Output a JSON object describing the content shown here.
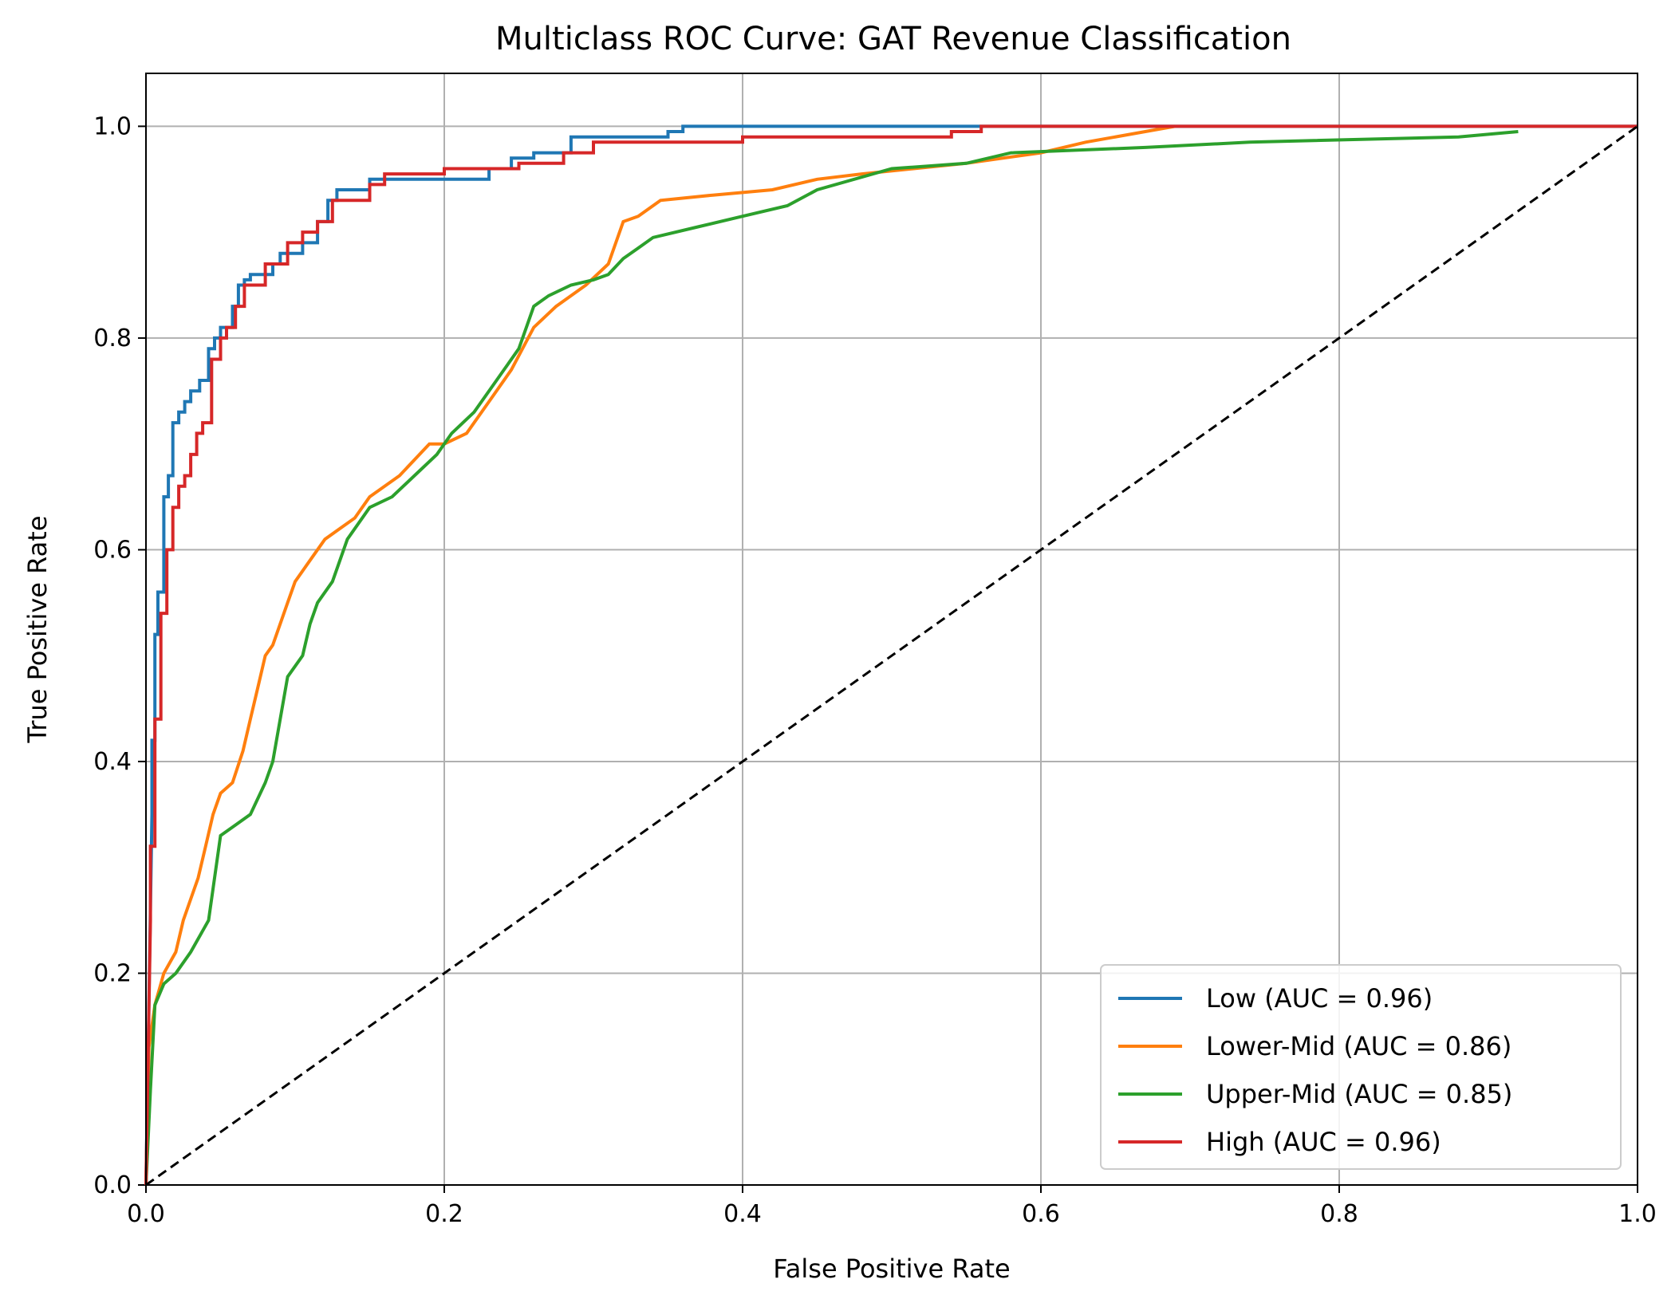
{
  "chart_data": {
    "type": "line",
    "title": "Multiclass ROC Curve: GAT Revenue Classification",
    "xlabel": "False Positive Rate",
    "ylabel": "True Positive Rate",
    "xlim": [
      0,
      1
    ],
    "ylim": [
      0,
      1.05
    ],
    "xticks": [
      "0.0",
      "0.2",
      "0.4",
      "0.6",
      "0.8",
      "1.0"
    ],
    "yticks": [
      "0.0",
      "0.2",
      "0.4",
      "0.6",
      "0.8",
      "1.0"
    ],
    "grid": true,
    "legend_position": "lower-right",
    "diagonal_reference": {
      "x": [
        0,
        1
      ],
      "y": [
        0,
        1
      ],
      "style": "dashed",
      "color": "#000000"
    },
    "series": [
      {
        "name": "Low (AUC = 0.96)",
        "color": "#1f77b4",
        "x": [
          0,
          0.004,
          0.004,
          0.006,
          0.006,
          0.008,
          0.008,
          0.012,
          0.012,
          0.015,
          0.015,
          0.018,
          0.018,
          0.022,
          0.022,
          0.026,
          0.026,
          0.03,
          0.03,
          0.036,
          0.036,
          0.042,
          0.042,
          0.046,
          0.046,
          0.05,
          0.05,
          0.058,
          0.058,
          0.062,
          0.062,
          0.066,
          0.066,
          0.07,
          0.07,
          0.085,
          0.085,
          0.09,
          0.09,
          0.105,
          0.105,
          0.115,
          0.115,
          0.122,
          0.122,
          0.128,
          0.128,
          0.15,
          0.15,
          0.165,
          0.165,
          0.23,
          0.23,
          0.245,
          0.245,
          0.26,
          0.26,
          0.285,
          0.285,
          0.35,
          0.35,
          0.36,
          0.36,
          0.56,
          0.56,
          1.0
        ],
        "y": [
          0,
          0.35,
          0.42,
          0.42,
          0.52,
          0.52,
          0.56,
          0.56,
          0.65,
          0.65,
          0.67,
          0.67,
          0.72,
          0.72,
          0.73,
          0.73,
          0.74,
          0.74,
          0.75,
          0.75,
          0.76,
          0.76,
          0.79,
          0.79,
          0.8,
          0.8,
          0.81,
          0.81,
          0.83,
          0.83,
          0.85,
          0.85,
          0.855,
          0.855,
          0.86,
          0.86,
          0.87,
          0.87,
          0.88,
          0.88,
          0.89,
          0.89,
          0.91,
          0.91,
          0.93,
          0.93,
          0.94,
          0.94,
          0.95,
          0.95,
          0.95,
          0.95,
          0.96,
          0.96,
          0.97,
          0.97,
          0.975,
          0.975,
          0.99,
          0.99,
          0.995,
          0.995,
          1.0,
          1.0,
          1.0,
          1.0
        ]
      },
      {
        "name": "Lower-Mid (AUC = 0.86)",
        "color": "#ff7f0e",
        "x": [
          0,
          0.002,
          0.002,
          0.006,
          0.006,
          0.012,
          0.012,
          0.02,
          0.02,
          0.025,
          0.025,
          0.03,
          0.03,
          0.035,
          0.035,
          0.04,
          0.04,
          0.045,
          0.045,
          0.05,
          0.05,
          0.058,
          0.058,
          0.065,
          0.065,
          0.07,
          0.07,
          0.075,
          0.075,
          0.08,
          0.08,
          0.085,
          0.085,
          0.095,
          0.095,
          0.1,
          0.1,
          0.11,
          0.11,
          0.12,
          0.12,
          0.13,
          0.13,
          0.14,
          0.14,
          0.15,
          0.15,
          0.17,
          0.17,
          0.19,
          0.19,
          0.2,
          0.2,
          0.215,
          0.215,
          0.23,
          0.23,
          0.245,
          0.245,
          0.26,
          0.26,
          0.275,
          0.275,
          0.295,
          0.295,
          0.31,
          0.31,
          0.32,
          0.32,
          0.33,
          0.33,
          0.345,
          0.345,
          0.38,
          0.38,
          0.42,
          0.42,
          0.45,
          0.45,
          0.48,
          0.48,
          0.55,
          0.55,
          0.6,
          0.6,
          0.63,
          0.63,
          0.67,
          0.67,
          0.69
        ],
        "y": [
          0,
          0.13,
          0.13,
          0.17,
          0.17,
          0.2,
          0.2,
          0.22,
          0.22,
          0.25,
          0.25,
          0.27,
          0.27,
          0.29,
          0.29,
          0.32,
          0.32,
          0.35,
          0.35,
          0.37,
          0.37,
          0.38,
          0.38,
          0.41,
          0.41,
          0.44,
          0.44,
          0.47,
          0.47,
          0.5,
          0.5,
          0.51,
          0.51,
          0.55,
          0.55,
          0.57,
          0.57,
          0.59,
          0.59,
          0.61,
          0.61,
          0.62,
          0.62,
          0.63,
          0.63,
          0.65,
          0.65,
          0.67,
          0.67,
          0.7,
          0.7,
          0.7,
          0.7,
          0.71,
          0.71,
          0.74,
          0.74,
          0.77,
          0.77,
          0.81,
          0.81,
          0.83,
          0.83,
          0.85,
          0.85,
          0.87,
          0.87,
          0.91,
          0.91,
          0.915,
          0.915,
          0.93,
          0.93,
          0.935,
          0.935,
          0.94,
          0.94,
          0.95,
          0.95,
          0.955,
          0.955,
          0.965,
          0.965,
          0.975,
          0.975,
          0.985,
          0.985,
          0.995,
          0.995,
          1.0
        ]
      },
      {
        "name": "Upper-Mid (AUC = 0.85)",
        "color": "#2ca02c",
        "x": [
          0,
          0.003,
          0.003,
          0.006,
          0.006,
          0.012,
          0.012,
          0.02,
          0.02,
          0.03,
          0.03,
          0.042,
          0.042,
          0.05,
          0.05,
          0.06,
          0.06,
          0.07,
          0.07,
          0.08,
          0.08,
          0.085,
          0.085,
          0.09,
          0.09,
          0.095,
          0.095,
          0.105,
          0.105,
          0.11,
          0.11,
          0.115,
          0.115,
          0.125,
          0.125,
          0.135,
          0.135,
          0.15,
          0.15,
          0.165,
          0.165,
          0.18,
          0.18,
          0.195,
          0.195,
          0.205,
          0.205,
          0.22,
          0.22,
          0.235,
          0.235,
          0.25,
          0.25,
          0.255,
          0.255,
          0.26,
          0.26,
          0.27,
          0.27,
          0.285,
          0.285,
          0.3,
          0.3,
          0.31,
          0.31,
          0.32,
          0.32,
          0.33,
          0.33,
          0.34,
          0.34,
          0.37,
          0.37,
          0.4,
          0.4,
          0.43,
          0.43,
          0.45,
          0.45,
          0.5,
          0.5,
          0.55,
          0.55,
          0.58,
          0.58,
          0.67,
          0.67,
          0.74,
          0.74,
          0.88,
          0.88,
          0.92
        ],
        "y": [
          0,
          0.09,
          0.09,
          0.17,
          0.17,
          0.19,
          0.19,
          0.2,
          0.2,
          0.22,
          0.22,
          0.25,
          0.25,
          0.33,
          0.33,
          0.34,
          0.34,
          0.35,
          0.35,
          0.38,
          0.38,
          0.4,
          0.4,
          0.44,
          0.44,
          0.48,
          0.48,
          0.5,
          0.5,
          0.53,
          0.53,
          0.55,
          0.55,
          0.57,
          0.57,
          0.61,
          0.61,
          0.64,
          0.64,
          0.65,
          0.65,
          0.67,
          0.67,
          0.69,
          0.69,
          0.71,
          0.71,
          0.73,
          0.73,
          0.76,
          0.76,
          0.79,
          0.79,
          0.81,
          0.81,
          0.83,
          0.83,
          0.84,
          0.84,
          0.85,
          0.85,
          0.855,
          0.855,
          0.86,
          0.86,
          0.875,
          0.875,
          0.885,
          0.885,
          0.895,
          0.895,
          0.905,
          0.905,
          0.915,
          0.915,
          0.925,
          0.925,
          0.94,
          0.94,
          0.96,
          0.96,
          0.965,
          0.965,
          0.975,
          0.975,
          0.98,
          0.98,
          0.985,
          0.985,
          0.99,
          0.99,
          0.995
        ]
      },
      {
        "name": "High (AUC = 0.96)",
        "color": "#d62728",
        "x": [
          0,
          0.003,
          0.003,
          0.006,
          0.006,
          0.01,
          0.01,
          0.014,
          0.014,
          0.018,
          0.018,
          0.022,
          0.022,
          0.026,
          0.026,
          0.03,
          0.03,
          0.034,
          0.034,
          0.038,
          0.038,
          0.044,
          0.044,
          0.05,
          0.05,
          0.054,
          0.054,
          0.06,
          0.06,
          0.066,
          0.066,
          0.08,
          0.08,
          0.095,
          0.095,
          0.105,
          0.105,
          0.115,
          0.115,
          0.125,
          0.125,
          0.15,
          0.15,
          0.16,
          0.16,
          0.2,
          0.2,
          0.25,
          0.25,
          0.28,
          0.28,
          0.3,
          0.3,
          0.4,
          0.4,
          0.54,
          0.54,
          0.56,
          0.56,
          1.0
        ],
        "y": [
          0,
          0.25,
          0.32,
          0.32,
          0.44,
          0.44,
          0.54,
          0.54,
          0.6,
          0.6,
          0.64,
          0.64,
          0.66,
          0.66,
          0.67,
          0.67,
          0.69,
          0.69,
          0.71,
          0.71,
          0.72,
          0.72,
          0.78,
          0.78,
          0.8,
          0.8,
          0.81,
          0.81,
          0.83,
          0.83,
          0.85,
          0.85,
          0.87,
          0.87,
          0.89,
          0.89,
          0.9,
          0.9,
          0.91,
          0.91,
          0.93,
          0.93,
          0.945,
          0.945,
          0.955,
          0.955,
          0.96,
          0.96,
          0.965,
          0.965,
          0.975,
          0.975,
          0.985,
          0.985,
          0.99,
          0.99,
          0.995,
          0.995,
          1.0,
          1.0
        ]
      }
    ]
  }
}
